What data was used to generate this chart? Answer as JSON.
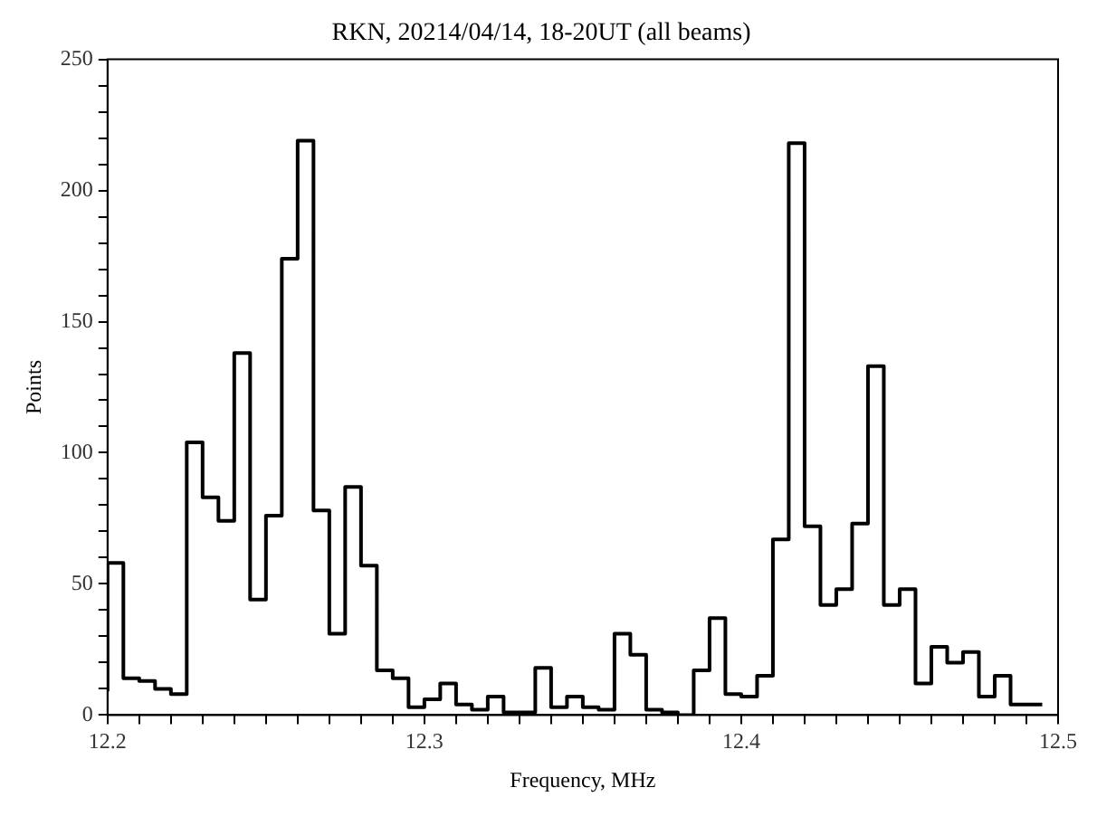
{
  "chart_data": {
    "type": "step",
    "title": "RKN, 20214/04/14, 18-20UT (all beams)",
    "xlabel": "Frequency, MHz",
    "ylabel": "Points",
    "x": [
      12.2,
      12.205,
      12.21,
      12.215,
      12.22,
      12.225,
      12.23,
      12.235,
      12.24,
      12.245,
      12.25,
      12.255,
      12.26,
      12.265,
      12.27,
      12.275,
      12.28,
      12.285,
      12.29,
      12.295,
      12.3,
      12.305,
      12.31,
      12.315,
      12.32,
      12.325,
      12.33,
      12.335,
      12.34,
      12.345,
      12.35,
      12.355,
      12.36,
      12.365,
      12.37,
      12.375,
      12.38,
      12.385,
      12.39,
      12.395,
      12.4,
      12.405,
      12.41,
      12.415,
      12.42,
      12.425,
      12.43,
      12.435,
      12.44,
      12.445,
      12.45,
      12.455,
      12.46,
      12.465,
      12.47,
      12.475,
      12.48,
      12.485,
      12.49,
      12.495
    ],
    "values": [
      9,
      58,
      14,
      13,
      10,
      8,
      104,
      83,
      74,
      138,
      44,
      76,
      174,
      219,
      78,
      31,
      87,
      57,
      17,
      14,
      3,
      6,
      12,
      4,
      2,
      7,
      1,
      1,
      18,
      3,
      7,
      3,
      2,
      31,
      23,
      2,
      1,
      0,
      17,
      37,
      8,
      7,
      15,
      67,
      218,
      72,
      42,
      48,
      73,
      133,
      42,
      48,
      12,
      26,
      20,
      24,
      7,
      15,
      4,
      4
    ],
    "color": "#000000",
    "xlim": [
      12.2,
      12.5
    ],
    "xticks": [
      12.2,
      {
        "value": 12.21,
        "label": null
      },
      {
        "value": 12.22,
        "label": null
      },
      {
        "value": 12.23,
        "label": null
      },
      {
        "value": 12.24,
        "label": null
      },
      {
        "value": 12.25,
        "label": null
      },
      {
        "value": 12.26,
        "label": null
      },
      {
        "value": 12.27,
        "label": null
      },
      {
        "value": 12.28,
        "label": null
      },
      {
        "value": 12.29,
        "label": null
      },
      12.3,
      {
        "value": 12.31,
        "label": null
      },
      {
        "value": 12.32,
        "label": null
      },
      {
        "value": 12.33,
        "label": null
      },
      {
        "value": 12.34,
        "label": null
      },
      {
        "value": 12.35,
        "label": null
      },
      {
        "value": 12.36,
        "label": null
      },
      {
        "value": 12.37,
        "label": null
      },
      {
        "value": 12.38,
        "label": null
      },
      {
        "value": 12.39,
        "label": null
      },
      12.4,
      {
        "value": 12.41,
        "label": null
      },
      {
        "value": 12.42,
        "label": null
      },
      {
        "value": 12.43,
        "label": null
      },
      {
        "value": 12.44,
        "label": null
      },
      {
        "value": 12.45,
        "label": null
      },
      {
        "value": 12.46,
        "label": null
      },
      {
        "value": 12.47,
        "label": null
      },
      {
        "value": 12.48,
        "label": null
      },
      {
        "value": 12.49,
        "label": null
      },
      12.5
    ],
    "ylim": [
      0,
      250
    ],
    "yticks": [
      0,
      {
        "value": 10,
        "label": null
      },
      {
        "value": 20,
        "label": null
      },
      {
        "value": 30,
        "label": null
      },
      {
        "value": 40,
        "label": null
      },
      50,
      {
        "value": 60,
        "label": null
      },
      {
        "value": 70,
        "label": null
      },
      {
        "value": 80,
        "label": null
      },
      {
        "value": 90,
        "label": null
      },
      100,
      {
        "value": 110,
        "label": null
      },
      {
        "value": 120,
        "label": null
      },
      {
        "value": 130,
        "label": null
      },
      {
        "value": 140,
        "label": null
      },
      150,
      {
        "value": 160,
        "label": null
      },
      {
        "value": 170,
        "label": null
      },
      {
        "value": 180,
        "label": null
      },
      {
        "value": 190,
        "label": null
      },
      200,
      {
        "value": 210,
        "label": null
      },
      {
        "value": 220,
        "label": null
      },
      {
        "value": 230,
        "label": null
      },
      {
        "value": 240,
        "label": null
      },
      250
    ],
    "grid": false,
    "legend": false
  }
}
